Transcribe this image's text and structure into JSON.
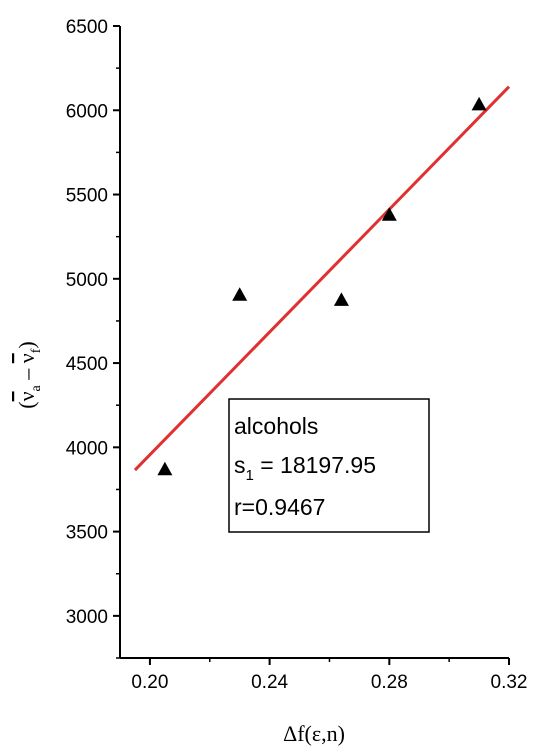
{
  "chart_data": {
    "type": "scatter",
    "xlabel": "Δf(ε,n)",
    "ylabel_parts": {
      "open": "(",
      "va": "ν",
      "va_sub": "a",
      "dash": "–",
      "vf": "ν",
      "vf_sub": "f",
      "close": ")"
    },
    "xlim": [
      0.19,
      0.32
    ],
    "ylim": [
      2750,
      6500
    ],
    "x_ticks": [
      0.2,
      0.24,
      0.28,
      0.32
    ],
    "x_tick_labels": [
      "0.20",
      "0.24",
      "0.28",
      "0.32"
    ],
    "y_ticks": [
      3000,
      3500,
      4000,
      4500,
      5000,
      5500,
      6000,
      6500
    ],
    "y_tick_labels": [
      "3000",
      "3500",
      "4000",
      "4500",
      "5000",
      "5500",
      "6000",
      "6500"
    ],
    "points": [
      {
        "x": 0.205,
        "y": 3870
      },
      {
        "x": 0.23,
        "y": 4905
      },
      {
        "x": 0.264,
        "y": 4875
      },
      {
        "x": 0.28,
        "y": 5380
      },
      {
        "x": 0.31,
        "y": 6035
      }
    ],
    "fit_line": {
      "x": [
        0.195,
        0.32
      ],
      "y": [
        3865,
        6140
      ],
      "color": "#e03030"
    },
    "marker_color": "#000000",
    "annotation": {
      "line1": "alcohols",
      "line2_prefix": "s",
      "line2_sub": "1",
      "line2_rest": " = 18197.95",
      "line3": "r=0.9467"
    }
  }
}
